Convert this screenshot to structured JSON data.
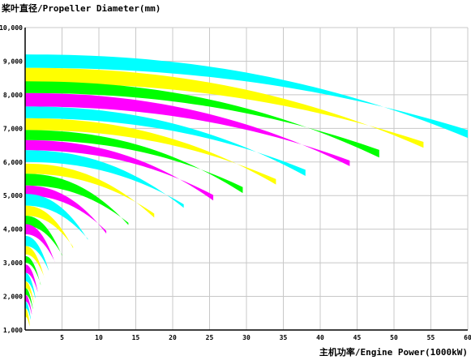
{
  "chart_data": {
    "type": "area",
    "title": "",
    "ylabel": "桨叶直径/Propeller Diameter(mm)",
    "xlabel": "主机功率/Engine Power(1000kW)",
    "xlim": [
      0,
      60
    ],
    "ylim": [
      1000,
      10000
    ],
    "x_ticks": [
      5,
      10,
      15,
      20,
      25,
      30,
      35,
      40,
      45,
      50,
      55,
      60
    ],
    "y_ticks": [
      1000,
      2000,
      3000,
      4000,
      5000,
      6000,
      7000,
      8000,
      9000,
      10000
    ],
    "x_tick_labels": [
      "5",
      "10",
      "15",
      "20",
      "25",
      "30",
      "35",
      "40",
      "45",
      "50",
      "55",
      "60"
    ],
    "y_tick_labels": [
      "1,000",
      "2,000",
      "3,000",
      "4,000",
      "5,000",
      "6,000",
      "7,000",
      "8,000",
      "9,000",
      "10,000"
    ],
    "grid": true,
    "band_colors": [
      "#00ffff",
      "#ffff00",
      "#00ff00",
      "#ff00ff"
    ],
    "bands": [
      {
        "y_top": 9200,
        "y_bottom": 8800,
        "x_max": 60
      },
      {
        "y_top": 8800,
        "y_bottom": 8350,
        "x_max": 54
      },
      {
        "y_top": 8400,
        "y_bottom": 8050,
        "x_max": 48
      },
      {
        "y_top": 8050,
        "y_bottom": 7650,
        "x_max": 44
      },
      {
        "y_top": 7650,
        "y_bottom": 7300,
        "x_max": 38
      },
      {
        "y_top": 7300,
        "y_bottom": 6950,
        "x_max": 34
      },
      {
        "y_top": 6950,
        "y_bottom": 6650,
        "x_max": 29.5
      },
      {
        "y_top": 6650,
        "y_bottom": 6350,
        "x_max": 25.5
      },
      {
        "y_top": 6350,
        "y_bottom": 6000,
        "x_max": 21.5
      },
      {
        "y_top": 5950,
        "y_bottom": 5650,
        "x_max": 17.5
      },
      {
        "y_top": 5650,
        "y_bottom": 5300,
        "x_max": 14
      },
      {
        "y_top": 5300,
        "y_bottom": 5000,
        "x_max": 11
      },
      {
        "y_top": 5050,
        "y_bottom": 4700,
        "x_max": 8.5
      },
      {
        "y_top": 4700,
        "y_bottom": 4400,
        "x_max": 6.5
      },
      {
        "y_top": 4400,
        "y_bottom": 4100,
        "x_max": 5
      },
      {
        "y_top": 4150,
        "y_bottom": 3850,
        "x_max": 4
      },
      {
        "y_top": 3800,
        "y_bottom": 3500,
        "x_max": 3.2
      },
      {
        "y_top": 3500,
        "y_bottom": 3250,
        "x_max": 2.6
      },
      {
        "y_top": 3200,
        "y_bottom": 3000,
        "x_max": 2.1
      },
      {
        "y_top": 2950,
        "y_bottom": 2700,
        "x_max": 1.7
      },
      {
        "y_top": 2700,
        "y_bottom": 2450,
        "x_max": 1.4
      },
      {
        "y_top": 2450,
        "y_bottom": 2250,
        "x_max": 1.2
      },
      {
        "y_top": 2250,
        "y_bottom": 2050,
        "x_max": 1.05
      },
      {
        "y_top": 2050,
        "y_bottom": 1850,
        "x_max": 0.9
      },
      {
        "y_top": 1850,
        "y_bottom": 1650,
        "x_max": 0.75
      },
      {
        "y_top": 1650,
        "y_bottom": 1400,
        "x_max": 0.6
      }
    ]
  }
}
